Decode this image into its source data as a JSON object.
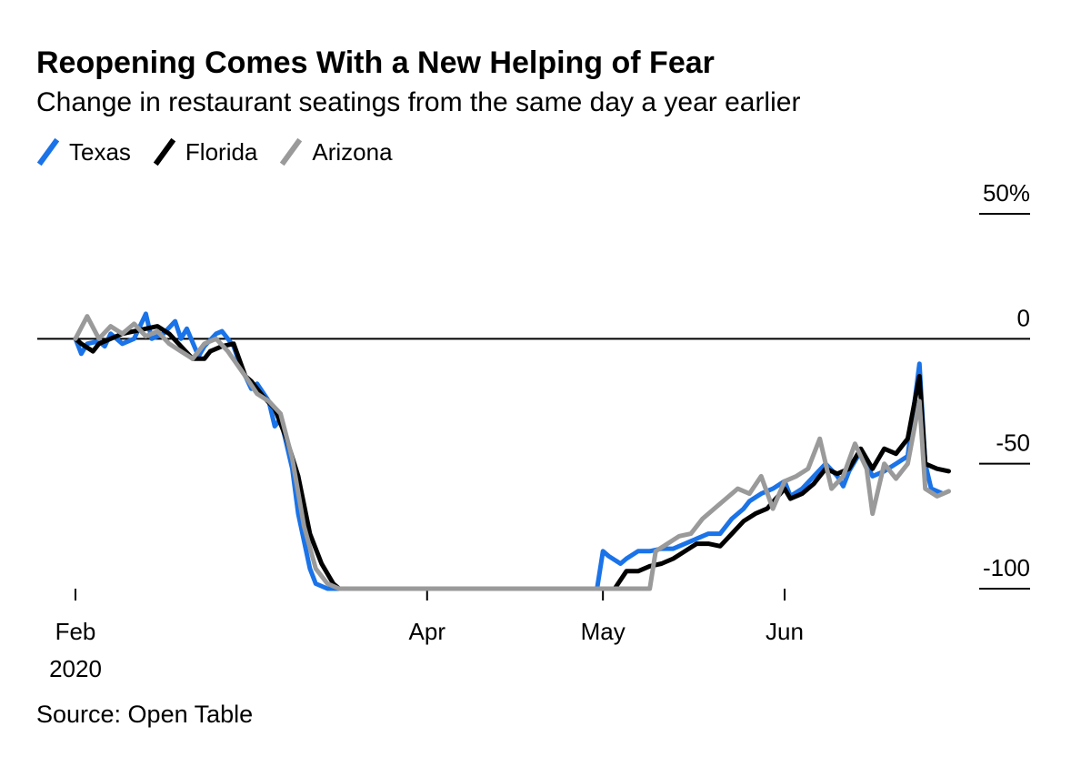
{
  "header": {
    "title": "Reopening Comes With a New Helping of Fear",
    "subtitle": "Change in restaurant seatings from the same day a year earlier"
  },
  "footer": {
    "source": "Source: Open Table"
  },
  "legend": [
    {
      "label": "Texas",
      "color": "#1a73e8"
    },
    {
      "label": "Florida",
      "color": "#000000"
    },
    {
      "label": "Arizona",
      "color": "#9a9a9a"
    }
  ],
  "chart_data": {
    "type": "line",
    "title": "Reopening Comes With a New Helping of Fear",
    "subtitle": "Change in restaurant seatings from the same day a year earlier",
    "xlabel": "",
    "ylabel": "",
    "ylim": [
      -100,
      50
    ],
    "y_ticks": [
      {
        "value": 50,
        "label": "50%"
      },
      {
        "value": 0,
        "label": "0"
      },
      {
        "value": -50,
        "label": "-50"
      },
      {
        "value": -100,
        "label": "-100"
      }
    ],
    "x_ticks": [
      {
        "date": "2020-02-01",
        "label": "Feb",
        "sublabel": "2020"
      },
      {
        "date": "2020-04-01",
        "label": "Apr",
        "sublabel": ""
      },
      {
        "date": "2020-05-01",
        "label": "May",
        "sublabel": ""
      },
      {
        "date": "2020-06-01",
        "label": "Jun",
        "sublabel": ""
      }
    ],
    "x_range": [
      "2020-01-26",
      "2020-07-02"
    ],
    "legend_position": "top-left",
    "grid": false,
    "series": [
      {
        "name": "Texas",
        "color": "#1a73e8",
        "points": [
          [
            "2020-02-01",
            0
          ],
          [
            "2020-02-02",
            -6
          ],
          [
            "2020-02-03",
            -2
          ],
          [
            "2020-02-05",
            -1
          ],
          [
            "2020-02-06",
            -3
          ],
          [
            "2020-02-07",
            2
          ],
          [
            "2020-02-09",
            -2
          ],
          [
            "2020-02-11",
            0
          ],
          [
            "2020-02-13",
            10
          ],
          [
            "2020-02-14",
            0
          ],
          [
            "2020-02-16",
            2
          ],
          [
            "2020-02-18",
            7
          ],
          [
            "2020-02-19",
            0
          ],
          [
            "2020-02-20",
            4
          ],
          [
            "2020-02-22",
            -7
          ],
          [
            "2020-02-23",
            -3
          ],
          [
            "2020-02-25",
            2
          ],
          [
            "2020-02-26",
            3
          ],
          [
            "2020-02-28",
            -3
          ],
          [
            "2020-02-29",
            -10
          ],
          [
            "2020-03-02",
            -20
          ],
          [
            "2020-03-03",
            -18
          ],
          [
            "2020-03-05",
            -25
          ],
          [
            "2020-03-06",
            -35
          ],
          [
            "2020-03-07",
            -32
          ],
          [
            "2020-03-09",
            -52
          ],
          [
            "2020-03-10",
            -70
          ],
          [
            "2020-03-12",
            -92
          ],
          [
            "2020-03-13",
            -98
          ],
          [
            "2020-03-15",
            -100
          ],
          [
            "2020-04-30",
            -100
          ],
          [
            "2020-05-01",
            -85
          ],
          [
            "2020-05-02",
            -87
          ],
          [
            "2020-05-04",
            -90
          ],
          [
            "2020-05-05",
            -88
          ],
          [
            "2020-05-07",
            -85
          ],
          [
            "2020-05-09",
            -85
          ],
          [
            "2020-05-11",
            -84
          ],
          [
            "2020-05-13",
            -84
          ],
          [
            "2020-05-15",
            -82
          ],
          [
            "2020-05-17",
            -80
          ],
          [
            "2020-05-19",
            -78
          ],
          [
            "2020-05-21",
            -78
          ],
          [
            "2020-05-23",
            -72
          ],
          [
            "2020-05-25",
            -68
          ],
          [
            "2020-05-26",
            -65
          ],
          [
            "2020-05-28",
            -62
          ],
          [
            "2020-05-30",
            -60
          ],
          [
            "2020-06-01",
            -57
          ],
          [
            "2020-06-02",
            -63
          ],
          [
            "2020-06-04",
            -60
          ],
          [
            "2020-06-06",
            -55
          ],
          [
            "2020-06-08",
            -50
          ],
          [
            "2020-06-10",
            -55
          ],
          [
            "2020-06-11",
            -59
          ],
          [
            "2020-06-12",
            -53
          ],
          [
            "2020-06-14",
            -45
          ],
          [
            "2020-06-16",
            -55
          ],
          [
            "2020-06-18",
            -53
          ],
          [
            "2020-06-20",
            -50
          ],
          [
            "2020-06-22",
            -47
          ],
          [
            "2020-06-24",
            -10
          ],
          [
            "2020-06-25",
            -50
          ],
          [
            "2020-06-26",
            -60
          ],
          [
            "2020-06-28",
            -62
          ]
        ]
      },
      {
        "name": "Florida",
        "color": "#000000",
        "points": [
          [
            "2020-02-01",
            0
          ],
          [
            "2020-02-02",
            -2
          ],
          [
            "2020-02-04",
            -5
          ],
          [
            "2020-02-05",
            -2
          ],
          [
            "2020-02-07",
            0
          ],
          [
            "2020-02-09",
            2
          ],
          [
            "2020-02-11",
            3
          ],
          [
            "2020-02-13",
            4
          ],
          [
            "2020-02-15",
            5
          ],
          [
            "2020-02-17",
            2
          ],
          [
            "2020-02-19",
            -3
          ],
          [
            "2020-02-21",
            -8
          ],
          [
            "2020-02-23",
            -8
          ],
          [
            "2020-02-24",
            -5
          ],
          [
            "2020-02-26",
            -3
          ],
          [
            "2020-02-28",
            -2
          ],
          [
            "2020-03-01",
            -15
          ],
          [
            "2020-03-02",
            -17
          ],
          [
            "2020-03-04",
            -23
          ],
          [
            "2020-03-06",
            -28
          ],
          [
            "2020-03-08",
            -40
          ],
          [
            "2020-03-10",
            -55
          ],
          [
            "2020-03-12",
            -78
          ],
          [
            "2020-03-14",
            -90
          ],
          [
            "2020-03-16",
            -98
          ],
          [
            "2020-03-17",
            -100
          ],
          [
            "2020-05-03",
            -100
          ],
          [
            "2020-05-05",
            -93
          ],
          [
            "2020-05-07",
            -93
          ],
          [
            "2020-05-09",
            -91
          ],
          [
            "2020-05-11",
            -90
          ],
          [
            "2020-05-13",
            -88
          ],
          [
            "2020-05-15",
            -85
          ],
          [
            "2020-05-17",
            -82
          ],
          [
            "2020-05-19",
            -82
          ],
          [
            "2020-05-21",
            -83
          ],
          [
            "2020-05-23",
            -78
          ],
          [
            "2020-05-25",
            -73
          ],
          [
            "2020-05-27",
            -70
          ],
          [
            "2020-05-29",
            -68
          ],
          [
            "2020-06-01",
            -60
          ],
          [
            "2020-06-02",
            -64
          ],
          [
            "2020-06-04",
            -62
          ],
          [
            "2020-06-06",
            -58
          ],
          [
            "2020-06-08",
            -52
          ],
          [
            "2020-06-10",
            -54
          ],
          [
            "2020-06-12",
            -52
          ],
          [
            "2020-06-14",
            -44
          ],
          [
            "2020-06-16",
            -52
          ],
          [
            "2020-06-18",
            -44
          ],
          [
            "2020-06-20",
            -46
          ],
          [
            "2020-06-22",
            -40
          ],
          [
            "2020-06-24",
            -15
          ],
          [
            "2020-06-25",
            -50
          ],
          [
            "2020-06-27",
            -52
          ],
          [
            "2020-06-29",
            -53
          ]
        ]
      },
      {
        "name": "Arizona",
        "color": "#9a9a9a",
        "points": [
          [
            "2020-02-01",
            0
          ],
          [
            "2020-02-03",
            9
          ],
          [
            "2020-02-05",
            0
          ],
          [
            "2020-02-07",
            5
          ],
          [
            "2020-02-09",
            2
          ],
          [
            "2020-02-11",
            6
          ],
          [
            "2020-02-13",
            1
          ],
          [
            "2020-02-15",
            3
          ],
          [
            "2020-02-17",
            -2
          ],
          [
            "2020-02-19",
            -5
          ],
          [
            "2020-02-21",
            -8
          ],
          [
            "2020-02-23",
            -2
          ],
          [
            "2020-02-25",
            0
          ],
          [
            "2020-02-27",
            -5
          ],
          [
            "2020-03-01",
            -15
          ],
          [
            "2020-03-03",
            -22
          ],
          [
            "2020-03-05",
            -25
          ],
          [
            "2020-03-07",
            -30
          ],
          [
            "2020-03-09",
            -48
          ],
          [
            "2020-03-11",
            -75
          ],
          [
            "2020-03-13",
            -92
          ],
          [
            "2020-03-15",
            -98
          ],
          [
            "2020-03-17",
            -100
          ],
          [
            "2020-05-09",
            -100
          ],
          [
            "2020-05-10",
            -85
          ],
          [
            "2020-05-12",
            -82
          ],
          [
            "2020-05-14",
            -79
          ],
          [
            "2020-05-16",
            -78
          ],
          [
            "2020-05-18",
            -72
          ],
          [
            "2020-05-20",
            -68
          ],
          [
            "2020-05-22",
            -64
          ],
          [
            "2020-05-24",
            -60
          ],
          [
            "2020-05-26",
            -62
          ],
          [
            "2020-05-28",
            -55
          ],
          [
            "2020-05-30",
            -68
          ],
          [
            "2020-06-01",
            -57
          ],
          [
            "2020-06-03",
            -55
          ],
          [
            "2020-06-05",
            -52
          ],
          [
            "2020-06-07",
            -40
          ],
          [
            "2020-06-09",
            -60
          ],
          [
            "2020-06-11",
            -55
          ],
          [
            "2020-06-13",
            -42
          ],
          [
            "2020-06-15",
            -52
          ],
          [
            "2020-06-16",
            -70
          ],
          [
            "2020-06-18",
            -50
          ],
          [
            "2020-06-20",
            -56
          ],
          [
            "2020-06-22",
            -50
          ],
          [
            "2020-06-24",
            -25
          ],
          [
            "2020-06-25",
            -60
          ],
          [
            "2020-06-27",
            -63
          ],
          [
            "2020-06-29",
            -61
          ]
        ]
      }
    ]
  }
}
